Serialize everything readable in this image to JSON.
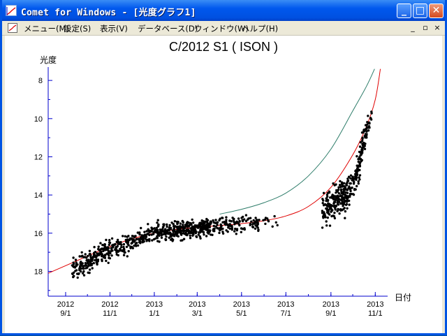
{
  "window": {
    "title": "Comet for Windows - [光度グラフ1]",
    "accent": "#0054e3",
    "buttons": {
      "minimize": "_",
      "maximize": "□",
      "close": "✕"
    }
  },
  "menubar": {
    "items": [
      "メニュー(M)",
      "設定(S)",
      "表示(V)",
      "データベース(D)",
      "ウィンドウ(W)",
      "ヘルプ(H)"
    ],
    "mdi_buttons": [
      "_",
      "▫",
      "×"
    ]
  },
  "chart_data": {
    "type": "scatter",
    "title": "C/2012 S1 ( ISON )",
    "ylabel": "光度",
    "xlabel": "日付",
    "ylim": [
      19.3,
      7.3
    ],
    "y_inverted": true,
    "yticks": [
      8,
      10,
      12,
      14,
      16,
      18
    ],
    "xlim": [
      "2012-08-08",
      "2013-11-18"
    ],
    "xticks": [
      {
        "date": "2012-09-01",
        "year": "2012",
        "md": "9/1"
      },
      {
        "date": "2012-11-01",
        "year": "2012",
        "md": "11/1"
      },
      {
        "date": "2013-01-01",
        "year": "2013",
        "md": "1/1"
      },
      {
        "date": "2013-03-01",
        "year": "2013",
        "md": "3/1"
      },
      {
        "date": "2013-05-01",
        "year": "2013",
        "md": "5/1"
      },
      {
        "date": "2013-07-01",
        "year": "2013",
        "md": "7/1"
      },
      {
        "date": "2013-09-01",
        "year": "2013",
        "md": "9/1"
      },
      {
        "date": "2013-11-01",
        "year": "2013",
        "md": "11/1"
      }
    ],
    "axis_color": "#0000cc",
    "series": [
      {
        "kind": "curve",
        "color": "#e00000",
        "points": [
          [
            "2012-08-08",
            18.1
          ],
          [
            "2012-09-01",
            17.7
          ],
          [
            "2012-10-01",
            17.2
          ],
          [
            "2012-11-01",
            16.7
          ],
          [
            "2012-12-01",
            16.3
          ],
          [
            "2013-01-01",
            16.0
          ],
          [
            "2013-02-01",
            15.8
          ],
          [
            "2013-03-01",
            15.7
          ],
          [
            "2013-04-01",
            15.6
          ],
          [
            "2013-05-01",
            15.5
          ],
          [
            "2013-06-01",
            15.35
          ],
          [
            "2013-07-01",
            15.1
          ],
          [
            "2013-08-01",
            14.6
          ],
          [
            "2013-09-01",
            13.6
          ],
          [
            "2013-10-01",
            11.9
          ],
          [
            "2013-10-20",
            10.4
          ],
          [
            "2013-11-01",
            9.0
          ],
          [
            "2013-11-08",
            7.4
          ]
        ]
      },
      {
        "kind": "curve",
        "color": "#2e7d6a",
        "points": [
          [
            "2013-04-01",
            15.0
          ],
          [
            "2013-05-01",
            14.75
          ],
          [
            "2013-06-01",
            14.4
          ],
          [
            "2013-07-01",
            13.9
          ],
          [
            "2013-08-01",
            13.0
          ],
          [
            "2013-09-01",
            11.6
          ],
          [
            "2013-10-01",
            9.6
          ],
          [
            "2013-10-20",
            8.3
          ],
          [
            "2013-10-31",
            7.4
          ]
        ]
      },
      {
        "kind": "observations",
        "color": "#000000",
        "clusters": [
          {
            "from": "2012-09-10",
            "to": "2012-10-31",
            "mag_from": 17.9,
            "mag_to": 16.9,
            "spread": 0.55,
            "count": 170
          },
          {
            "from": "2012-10-31",
            "to": "2013-01-10",
            "mag_from": 16.9,
            "mag_to": 15.9,
            "spread": 0.5,
            "count": 190
          },
          {
            "from": "2013-01-10",
            "to": "2013-03-20",
            "mag_from": 15.9,
            "mag_to": 15.7,
            "spread": 0.45,
            "count": 320
          },
          {
            "from": "2013-03-20",
            "to": "2013-05-25",
            "mag_from": 15.6,
            "mag_to": 15.5,
            "spread": 0.4,
            "count": 120
          },
          {
            "from": "2013-05-25",
            "to": "2013-06-25",
            "mag_from": 15.4,
            "mag_to": 15.3,
            "spread": 0.3,
            "count": 12
          },
          {
            "from": "2013-08-20",
            "to": "2013-09-20",
            "mag_from": 14.9,
            "mag_to": 14.0,
            "spread": 0.9,
            "count": 170
          },
          {
            "from": "2013-09-20",
            "to": "2013-10-12",
            "mag_from": 14.2,
            "mag_to": 12.5,
            "spread": 0.9,
            "count": 110
          },
          {
            "from": "2013-10-10",
            "to": "2013-10-27",
            "mag_from": 12.1,
            "mag_to": 9.6,
            "spread": 0.6,
            "count": 70
          }
        ]
      }
    ]
  }
}
